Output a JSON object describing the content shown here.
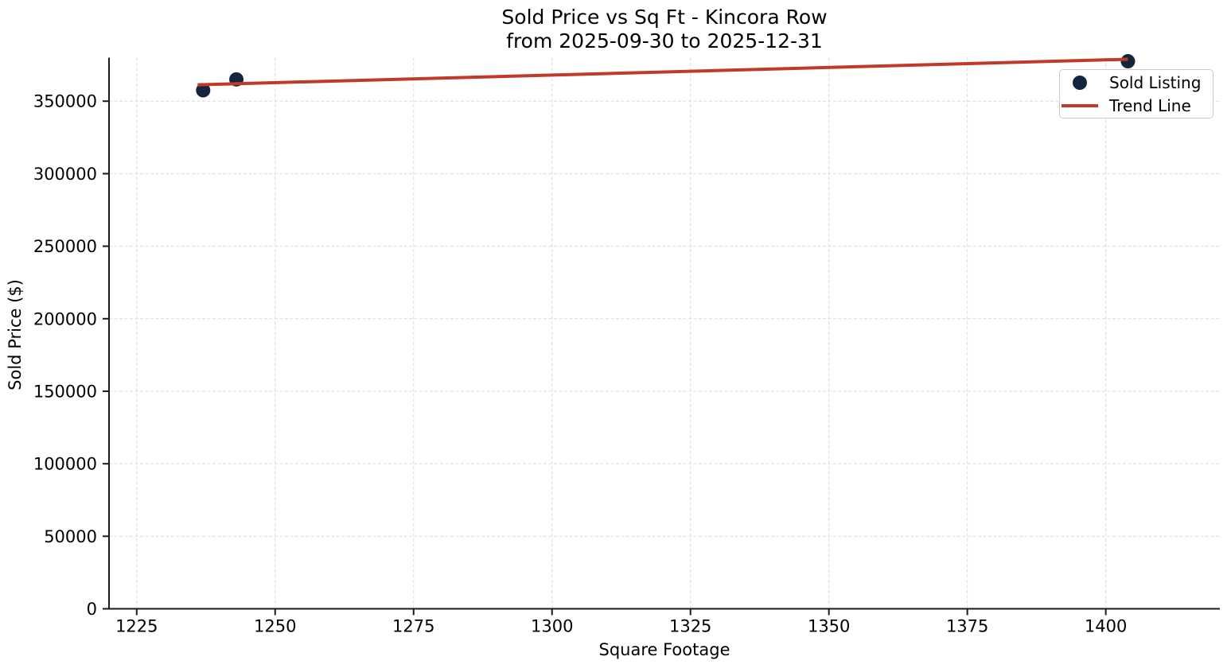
{
  "chart_data": {
    "type": "scatter",
    "title": "Sold Price vs Sq Ft - Kincora Row",
    "subtitle": "from 2025-09-30 to 2025-12-31",
    "xlabel": "Square Footage",
    "ylabel": "Sold Price ($)",
    "xlim": [
      1220,
      1420.6
    ],
    "ylim": [
      0,
      380000
    ],
    "x_ticks": [
      1225,
      1250,
      1275,
      1300,
      1325,
      1350,
      1375,
      1400
    ],
    "y_ticks": [
      0,
      50000,
      100000,
      150000,
      200000,
      250000,
      300000,
      350000
    ],
    "grid": true,
    "legend_position": "upper right",
    "series": [
      {
        "name": "Sold Listing",
        "kind": "scatter",
        "color": "#13263d",
        "points": [
          [
            1237,
            357500
          ],
          [
            1243,
            365000
          ],
          [
            1404,
            377500
          ]
        ]
      },
      {
        "name": "Trend Line",
        "kind": "line",
        "color": "#c0392b",
        "points": [
          [
            1236,
            361300
          ],
          [
            1404,
            378900
          ]
        ]
      }
    ],
    "layout": {
      "axis_color": "#1a1a1a",
      "grid_color": "#dcdcdc",
      "tick_label_color": "#000000",
      "legend_border_color": "#cccccc",
      "background_color": "#ffffff"
    }
  }
}
